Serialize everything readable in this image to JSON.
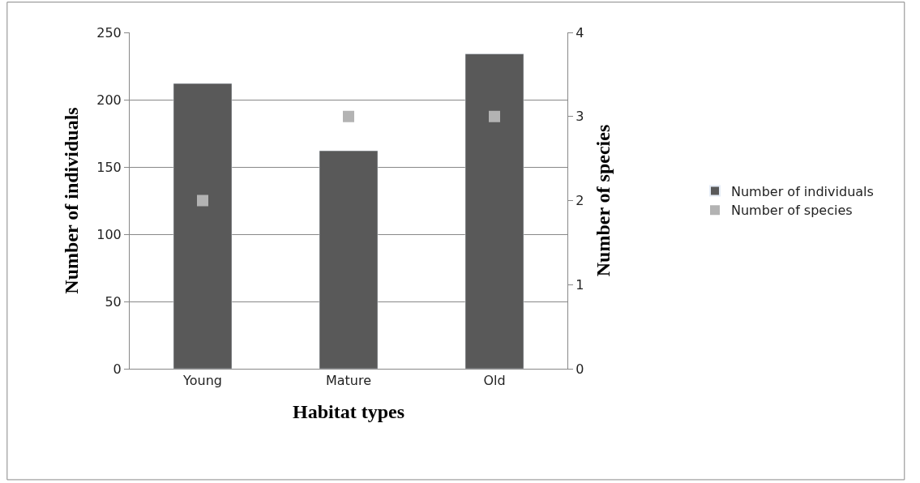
{
  "chart_data": {
    "type": "bar",
    "xlabel": "Habitat types",
    "ylabel": "Number of individuals",
    "y2label": "Number of species",
    "categories": [
      "Young",
      "Mature",
      "Old"
    ],
    "series": [
      {
        "name": "Number of individuals",
        "color": "#595959",
        "values": [
          212,
          162,
          234
        ]
      },
      {
        "name": "Number of species",
        "type": "scatter",
        "axis": "y2",
        "color": "#b3b3b3",
        "values": [
          2,
          3,
          3
        ]
      }
    ],
    "ylim": [
      0,
      250
    ],
    "yticks": [
      0,
      50,
      100,
      150,
      200,
      250
    ],
    "y2lim": [
      0,
      4
    ],
    "y2ticks": [
      0,
      1,
      2,
      3,
      4
    ],
    "grid": "y",
    "legend": "right",
    "marker": "square"
  }
}
